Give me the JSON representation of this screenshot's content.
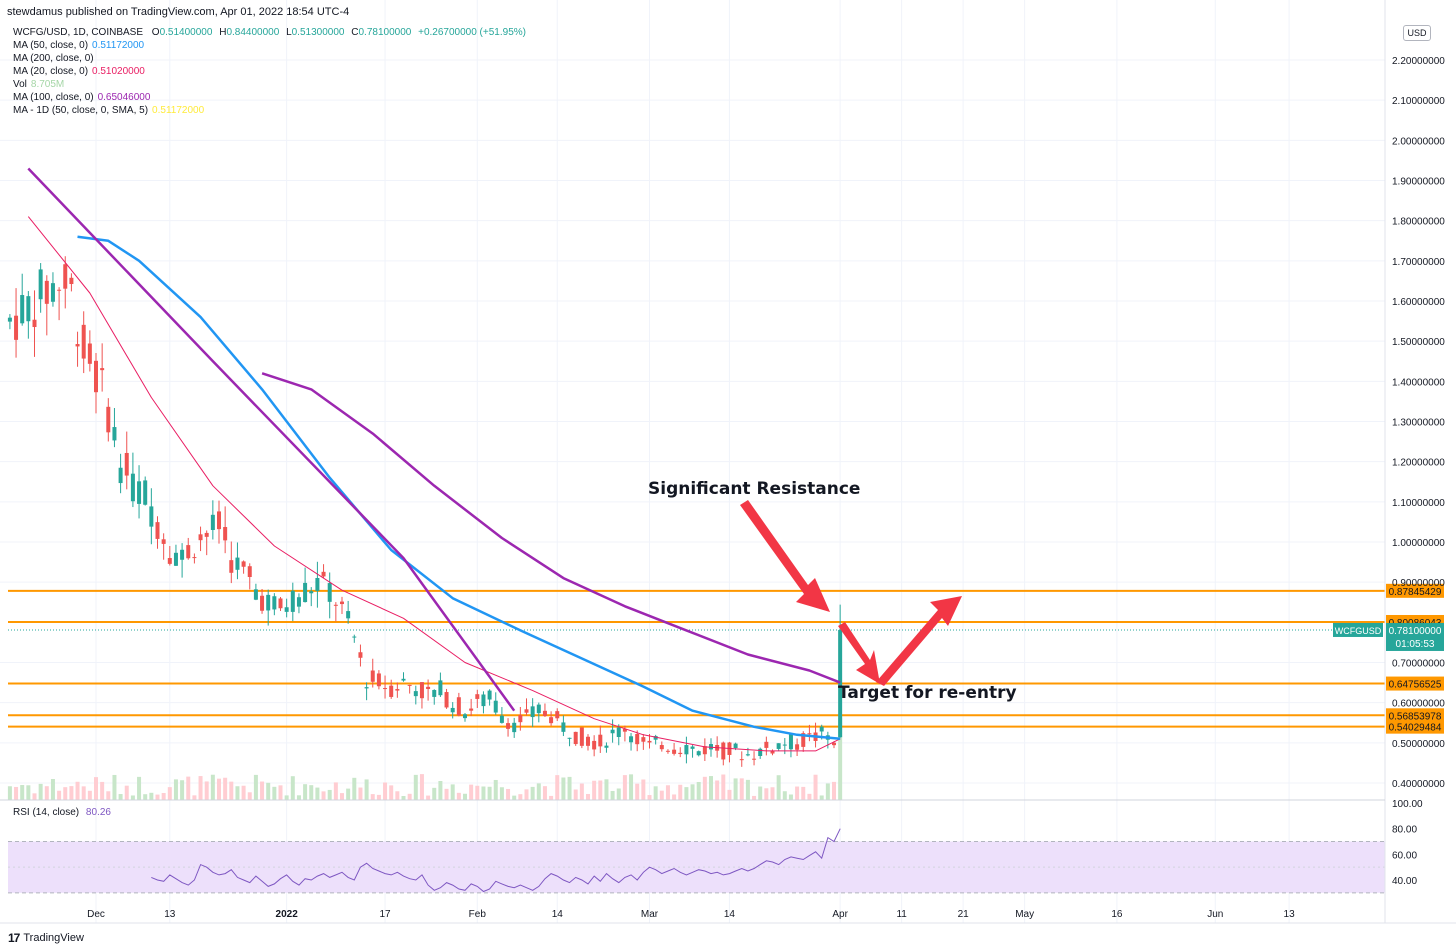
{
  "header": {
    "published": "stewdamus published on TradingView.com, Apr 01, 2022 18:54 UTC-4"
  },
  "legend": {
    "symbol_line": {
      "symbol": "WCFG/USD, 1D, COINBASE",
      "o_label": "O",
      "o": "0.51400000",
      "h_label": "H",
      "h": "0.84400000",
      "l_label": "L",
      "l": "0.51300000",
      "c_label": "C",
      "c": "0.78100000",
      "change": "+0.26700000 (+51.95%)"
    },
    "indicators": [
      {
        "label": "MA (50, close, 0)",
        "value": "0.51172000",
        "color": "#2196f3"
      },
      {
        "label": "MA (200, close, 0)",
        "value": "",
        "color": "#131722"
      },
      {
        "label": "MA (20, close, 0)",
        "value": "0.51020000",
        "color": "#e91e63"
      },
      {
        "label": "Vol",
        "value": "8.705M",
        "color": "#a5d6a7"
      },
      {
        "label": "MA (100, close, 0)",
        "value": "0.65046000",
        "color": "#9c27b0"
      },
      {
        "label": "MA - 1D (50, close, 0, SMA, 5)",
        "value": "0.51172000",
        "color": "#ffeb3b"
      }
    ]
  },
  "currency": "USD",
  "price_axis_labels": [
    "2.20000000",
    "2.10000000",
    "2.00000000",
    "1.90000000",
    "1.80000000",
    "1.70000000",
    "1.60000000",
    "1.50000000",
    "1.40000000",
    "1.30000000",
    "1.20000000",
    "1.10000000",
    "1.00000000",
    "0.90000000",
    "0.70000000",
    "0.60000000",
    "0.50000000",
    "0.40000000"
  ],
  "rsi_axis_labels": [
    "100.00",
    "80.00",
    "60.00",
    "40.00"
  ],
  "time_axis_labels": [
    "Dec",
    "13",
    "2022",
    "17",
    "Feb",
    "14",
    "Mar",
    "14",
    "Apr",
    "11",
    "21",
    "May",
    "16",
    "Jun",
    "13"
  ],
  "levels": [
    {
      "price": 0.87845429,
      "label": "0.87845429"
    },
    {
      "price": 0.80086043,
      "label": "0.80086043"
    },
    {
      "price": 0.64756525,
      "label": "0.64756525"
    },
    {
      "price": 0.56853978,
      "label": "0.56853978"
    },
    {
      "price": 0.54029484,
      "label": "0.54029484"
    }
  ],
  "last_price": {
    "ticker": "WCFGUSD",
    "value": "0.78100000",
    "countdown": "01:05:53"
  },
  "annotations": {
    "resistance": "Significant Resistance",
    "reentry": "Target for re-entry"
  },
  "rsi": {
    "title": "RSI (14, close)",
    "value": "80.26"
  },
  "footer": {
    "brand": "TradingView"
  },
  "colors": {
    "up": "#26a69a",
    "down": "#ef5350",
    "level": "#ff9800",
    "ma50": "#2196f3",
    "ma100": "#9c27b0",
    "ma20": "#e91e63",
    "arrow": "#f23645",
    "rsi_line": "#7e57c2",
    "rsi_band": "#ede0fb"
  },
  "chart_data": {
    "type": "candlestick",
    "price_range": [
      0.35,
      2.25
    ],
    "rsi_range": [
      30,
      100
    ],
    "ma100": {
      "x": [
        "Dec 28",
        "Jan 5",
        "Jan 15",
        "Jan 25",
        "Feb 5",
        "Feb 15",
        "Feb 25",
        "Mar 7",
        "Mar 17",
        "Mar 27",
        "Apr 1"
      ],
      "y": [
        1.42,
        1.38,
        1.27,
        1.14,
        1.01,
        0.91,
        0.84,
        0.78,
        0.72,
        0.68,
        0.65
      ]
    },
    "ma50": {
      "x": [
        "Nov 28",
        "Dec 3",
        "Dec 8",
        "Dec 18",
        "Dec 28",
        "Jan 8",
        "Jan 18",
        "Jan 28",
        "Feb 8",
        "Feb 18",
        "Feb 28",
        "Mar 8",
        "Mar 18",
        "Mar 25",
        "Apr 1"
      ],
      "y": [
        1.76,
        1.75,
        1.7,
        1.56,
        1.38,
        1.16,
        0.98,
        0.86,
        0.78,
        0.71,
        0.64,
        0.58,
        0.54,
        0.52,
        0.51
      ]
    },
    "ma20": {
      "x": [
        "Nov 20",
        "Nov 30",
        "Dec 10",
        "Dec 20",
        "Dec 30",
        "Jan 10",
        "Jan 20",
        "Jan 30",
        "Feb 10",
        "Feb 20",
        "Feb 28",
        "Mar 10",
        "Mar 20",
        "Mar 28",
        "Apr 1"
      ],
      "y": [
        1.81,
        1.62,
        1.36,
        1.14,
        0.99,
        0.88,
        0.81,
        0.7,
        0.63,
        0.56,
        0.52,
        0.49,
        0.48,
        0.48,
        0.51
      ]
    },
    "ma200": {
      "x": [
        "Nov 20",
        "Dec 20",
        "Jan 20",
        "Feb 7"
      ],
      "y": [
        1.93,
        1.45,
        0.96,
        0.58
      ]
    },
    "rsi_values": [
      42,
      40,
      39,
      44,
      41,
      38,
      36,
      40,
      52,
      50,
      46,
      44,
      45,
      48,
      42,
      40,
      38,
      43,
      39,
      35,
      37,
      41,
      44,
      39,
      36,
      41,
      40,
      43,
      45,
      42,
      44,
      46,
      42,
      40,
      50,
      53,
      49,
      47,
      45,
      44,
      46,
      43,
      41,
      40,
      44,
      36,
      32,
      34,
      38,
      36,
      33,
      32,
      37,
      35,
      31,
      33,
      39,
      37,
      35,
      34,
      36,
      34,
      32,
      35,
      41,
      45,
      43,
      40,
      38,
      42,
      40,
      37,
      43,
      39,
      45,
      41,
      38,
      42,
      44,
      40,
      46,
      50,
      48,
      45,
      47,
      49,
      46,
      44,
      46,
      48,
      47,
      45,
      46,
      44,
      45,
      47,
      49,
      47,
      49,
      52,
      55,
      54,
      52,
      56,
      58,
      57,
      56,
      59,
      62,
      57,
      73,
      70,
      80
    ]
  }
}
